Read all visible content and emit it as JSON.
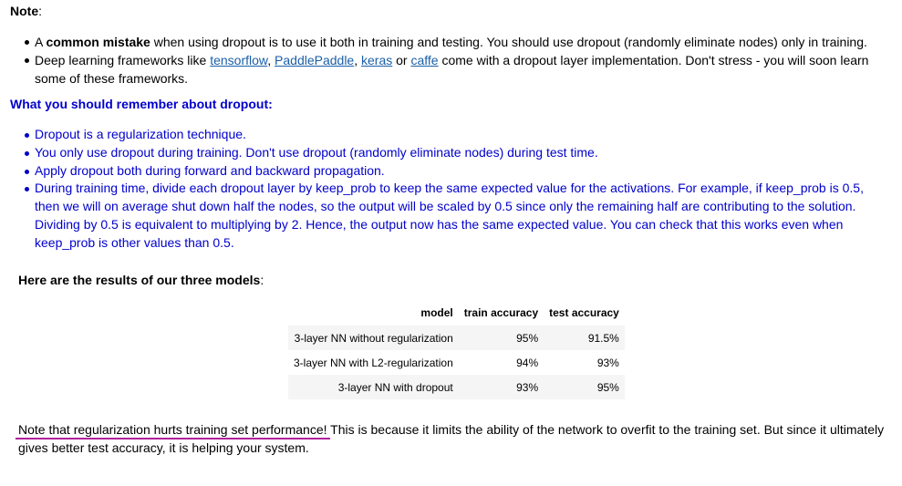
{
  "note": {
    "title": "Note",
    "title_colon": ":",
    "bullet1": {
      "prefix": "A ",
      "bold": "common mistake",
      "rest": " when using dropout is to use it both in training and testing. You should use dropout (randomly eliminate nodes) only in training."
    },
    "bullet2": {
      "prefix": "Deep learning frameworks like ",
      "links": [
        "tensorflow",
        "PaddlePaddle",
        "keras",
        "caffe"
      ],
      "sep1": ", ",
      "sep2": ", ",
      "sep3": " or ",
      "rest": " come with a dropout layer implementation. Don't stress - you will soon learn some of these frameworks."
    }
  },
  "remember": {
    "title": "What you should remember about dropout:",
    "items": [
      "Dropout is a regularization technique.",
      "You only use dropout during training. Don't use dropout (randomly eliminate nodes) during test time.",
      "Apply dropout both during forward and backward propagation.",
      "During training time, divide each dropout layer by keep_prob to keep the same expected value for the activations. For example, if keep_prob is 0.5, then we will on average shut down half the nodes, so the output will be scaled by 0.5 since only the remaining half are contributing to the solution. Dividing by 0.5 is equivalent to multiplying by 2. Hence, the output now has the same expected value. You can check that this works even when keep_prob is other values than 0.5."
    ]
  },
  "results": {
    "title": "Here are the results of our three models",
    "title_colon": ":",
    "headers": [
      "model",
      "train accuracy",
      "test accuracy"
    ],
    "rows": [
      [
        "3-layer NN without regularization",
        "95%",
        "91.5%"
      ],
      [
        "3-layer NN with L2-regularization",
        "94%",
        "93%"
      ],
      [
        "3-layer NN with dropout",
        "93%",
        "95%"
      ]
    ]
  },
  "footer": {
    "highlight": "Note that regularization hurts training set performance!",
    "rest": " This is because it limits the ability of the network to overfit to the training set. But since it ultimately gives better test accuracy, it is helping your system."
  },
  "colors": {
    "blue_text": "#0000cc",
    "link": "#1a5fa8",
    "highlight_underline": "#b0219c"
  }
}
